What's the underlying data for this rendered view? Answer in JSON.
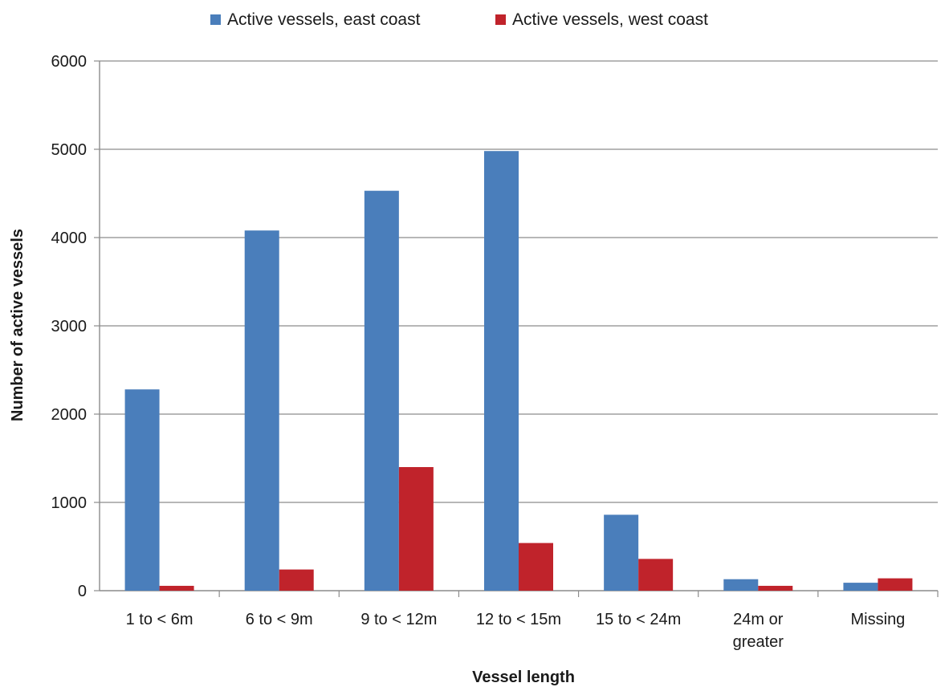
{
  "chart_data": {
    "type": "bar",
    "title": "",
    "xlabel": "Vessel length",
    "ylabel": "Number of active vessels",
    "ylim": [
      0,
      6000
    ],
    "yticks": [
      0,
      1000,
      2000,
      3000,
      4000,
      5000,
      6000
    ],
    "grid": "horizontal",
    "legend_position": "top",
    "categories": [
      "1 to < 6m",
      "6 to < 9m",
      "9 to < 12m",
      "12 to < 15m",
      "15 to < 24m",
      "24m or greater",
      "Missing"
    ],
    "category_lines": [
      [
        "1 to < 6m"
      ],
      [
        "6 to < 9m"
      ],
      [
        "9 to < 12m"
      ],
      [
        "12 to < 15m"
      ],
      [
        "15 to < 24m"
      ],
      [
        "24m or",
        "greater"
      ],
      [
        "Missing"
      ]
    ],
    "series": [
      {
        "name": "Active vessels, east coast",
        "color": "#4a7ebb",
        "values": [
          2280,
          4080,
          4530,
          4980,
          860,
          130,
          90
        ]
      },
      {
        "name": "Active vessels, west coast",
        "color": "#c0232b",
        "values": [
          55,
          240,
          1400,
          540,
          360,
          55,
          140
        ]
      }
    ]
  }
}
